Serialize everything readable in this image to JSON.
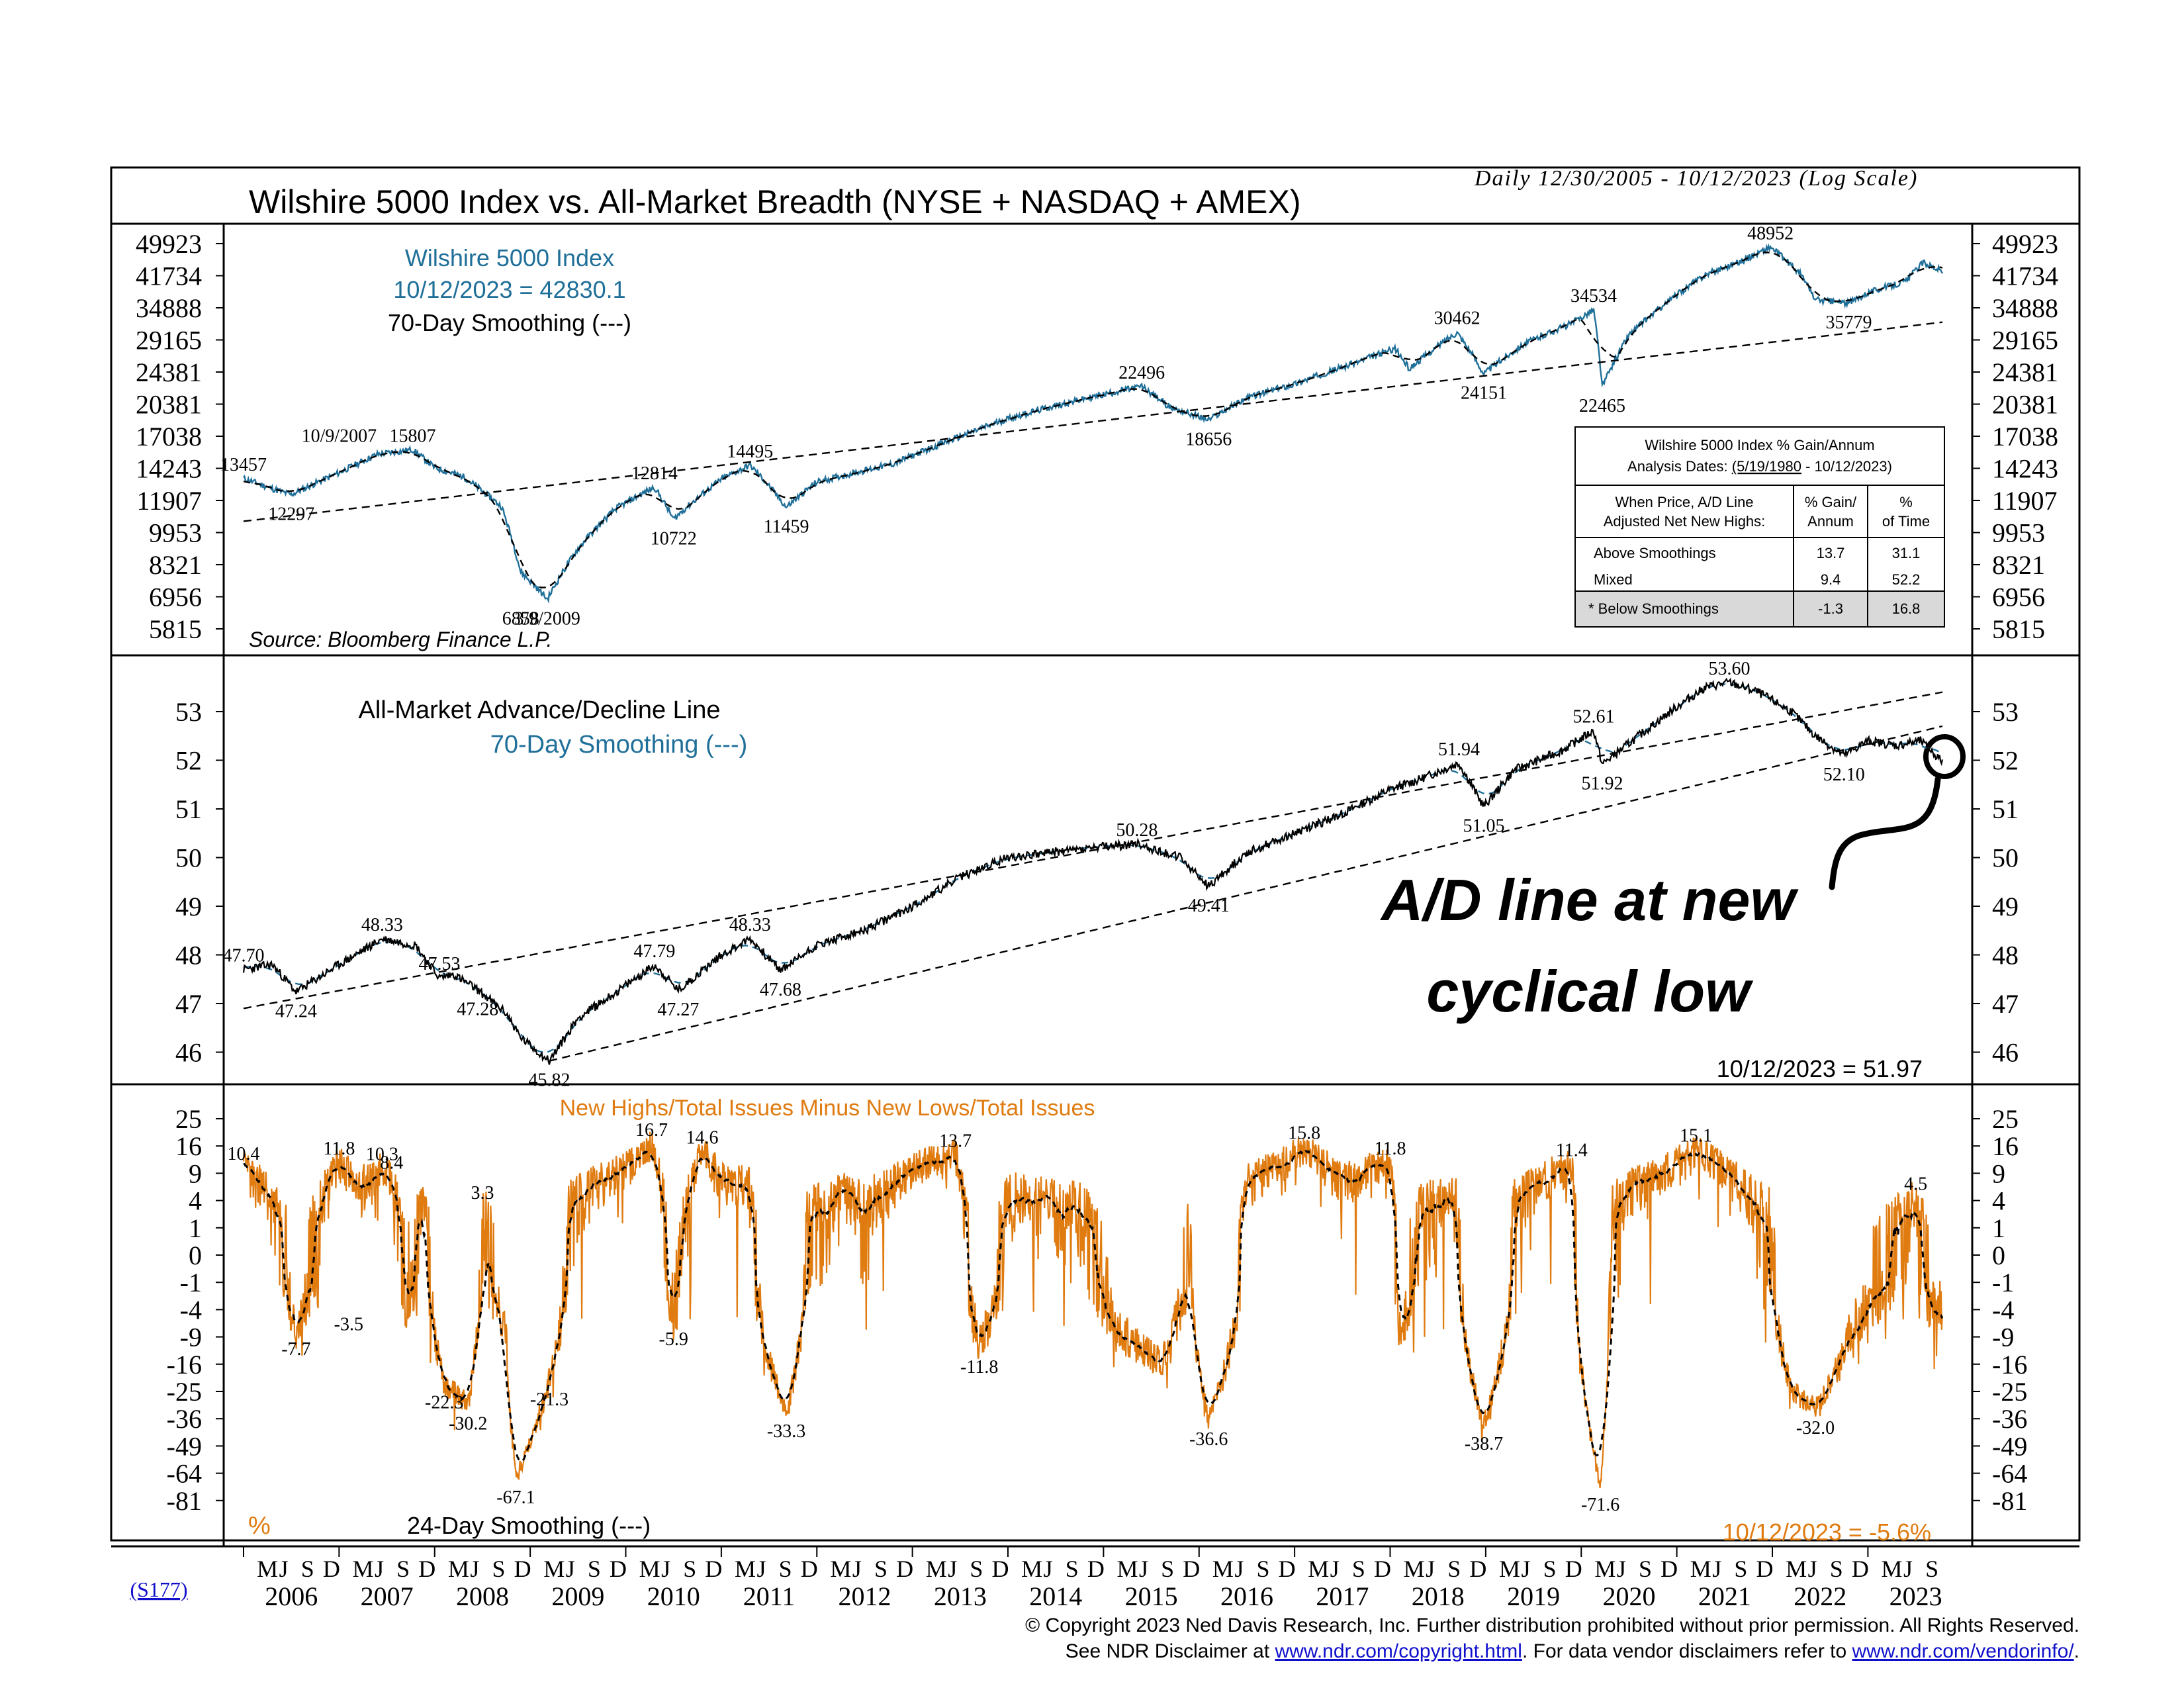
{
  "colors": {
    "blue": "#1f6f99",
    "orange": "#e07b10",
    "black": "#000000",
    "link": "#1010cc",
    "table_shade": "#d9d9d9"
  },
  "header": {
    "title": "Wilshire 5000 Index vs. All-Market Breadth (NYSE + NASDAQ + AMEX)",
    "date_range": "Daily 12/30/2005 - 10/12/2023 (Log Scale)"
  },
  "chart_data": [
    {
      "type": "line",
      "panel": "top",
      "legend": [
        "Wilshire 5000 Index",
        "10/12/2023 = 42830.1",
        "70-Day Smoothing (---)"
      ],
      "source": "Source: Bloomberg Finance L.P.",
      "scale": "log",
      "y_ticks": [
        "49923",
        "41734",
        "34888",
        "29165",
        "24381",
        "20381",
        "17038",
        "14243",
        "11907",
        "9953",
        "8321",
        "6956",
        "5815"
      ],
      "series": [
        {
          "name": "Wilshire 5000 Index",
          "x": [
            2006.0,
            2006.35,
            2006.5,
            2007.0,
            2007.4,
            2007.77,
            2008.0,
            2008.3,
            2008.7,
            2008.9,
            2009.18,
            2009.5,
            2009.9,
            2010.3,
            2010.5,
            2011.0,
            2011.3,
            2011.68,
            2012.0,
            2012.4,
            2012.8,
            2013.5,
            2014.0,
            2014.5,
            2015.0,
            2015.4,
            2015.7,
            2016.1,
            2016.5,
            2017.0,
            2017.6,
            2018.05,
            2018.2,
            2018.7,
            2018.98,
            2019.4,
            2019.9,
            2020.13,
            2020.22,
            2020.5,
            2020.9,
            2021.3,
            2021.7,
            2021.98,
            2022.3,
            2022.45,
            2022.8,
            2023.0,
            2023.4,
            2023.58,
            2023.78
          ],
          "y": [
            13457,
            12600,
            12297,
            13900,
            15400,
            15807,
            14300,
            13600,
            11500,
            8000,
            6858,
            9100,
            11400,
            12814,
            10722,
            13400,
            14495,
            11459,
            13200,
            13900,
            14600,
            17000,
            18800,
            20200,
            21500,
            22496,
            20000,
            18656,
            21100,
            22800,
            25500,
            27800,
            24800,
            30462,
            24151,
            28500,
            32000,
            34534,
            22465,
            30000,
            36000,
            42000,
            45500,
            48952,
            42000,
            36500,
            35779,
            38000,
            40500,
            45000,
            42830
          ]
        },
        {
          "name": "long-term trend",
          "x": [
            2006.0,
            2023.78
          ],
          "y": [
            10600,
            32200
          ]
        }
      ],
      "labels": [
        {
          "text": "13457",
          "x": 2006.0,
          "y": 13457
        },
        {
          "text": "12297",
          "x": 2006.5,
          "y": 12297
        },
        {
          "text": "10/9/2007",
          "x": 2007.0,
          "y": 15807
        },
        {
          "text": "15807",
          "x": 2007.77,
          "y": 15807
        },
        {
          "text": "6858",
          "x": 2008.9,
          "y": 6858
        },
        {
          "text": "3/9/2009",
          "x": 2009.18,
          "y": 6858
        },
        {
          "text": "12814",
          "x": 2010.3,
          "y": 12814
        },
        {
          "text": "10722",
          "x": 2010.5,
          "y": 10722
        },
        {
          "text": "14495",
          "x": 2011.3,
          "y": 14495
        },
        {
          "text": "11459",
          "x": 2011.68,
          "y": 11459
        },
        {
          "text": "22496",
          "x": 2015.4,
          "y": 22496
        },
        {
          "text": "18656",
          "x": 2016.1,
          "y": 18656
        },
        {
          "text": "30462",
          "x": 2018.7,
          "y": 30462
        },
        {
          "text": "24151",
          "x": 2018.98,
          "y": 24151
        },
        {
          "text": "34534",
          "x": 2020.13,
          "y": 34534
        },
        {
          "text": "22465",
          "x": 2020.22,
          "y": 22465
        },
        {
          "text": "48952",
          "x": 2021.98,
          "y": 48952
        },
        {
          "text": "35779",
          "x": 2022.8,
          "y": 35779
        }
      ],
      "table": {
        "title": "Wilshire 5000 Index % Gain/Annum",
        "dates_prefix": "Analysis Dates:",
        "dates_underlined": "(5/19/1980",
        "dates_suffix": "- 10/12/2023)",
        "header_col1": [
          "When Price, A/D Line",
          "Adjusted Net New Highs:"
        ],
        "header_col2": [
          "% Gain/",
          "Annum"
        ],
        "header_col3": [
          "%",
          "of Time"
        ],
        "rows": [
          {
            "label": "Above Smoothings",
            "gain": "13.7",
            "time": "31.1"
          },
          {
            "label": "Mixed",
            "gain": "9.4",
            "time": "52.2"
          },
          {
            "label": "*  Below Smoothings",
            "gain": "-1.3",
            "time": "16.8"
          }
        ]
      }
    },
    {
      "type": "line",
      "panel": "middle",
      "legend": [
        "All-Market Advance/Decline Line",
        "70-Day Smoothing (---)"
      ],
      "current": "10/12/2023 = 51.97",
      "y_ticks": [
        "53",
        "52",
        "51",
        "50",
        "49",
        "48",
        "47",
        "46"
      ],
      "series": [
        {
          "name": "All-Market Advance/Decline Line",
          "x": [
            2006.0,
            2006.3,
            2006.55,
            2007.0,
            2007.45,
            2007.8,
            2008.05,
            2008.2,
            2008.45,
            2008.75,
            2008.9,
            2009.2,
            2009.5,
            2009.95,
            2010.3,
            2010.55,
            2011.0,
            2011.3,
            2011.62,
            2012.0,
            2012.5,
            2013.0,
            2013.5,
            2014.0,
            2014.4,
            2014.9,
            2015.35,
            2015.8,
            2016.1,
            2016.5,
            2017.0,
            2017.5,
            2018.0,
            2018.3,
            2018.72,
            2018.98,
            2019.3,
            2019.8,
            2020.13,
            2020.22,
            2020.6,
            2021.0,
            2021.3,
            2021.55,
            2021.85,
            2022.2,
            2022.45,
            2022.75,
            2023.0,
            2023.3,
            2023.55,
            2023.78
          ],
          "y": [
            47.7,
            47.8,
            47.24,
            47.8,
            48.33,
            48.2,
            47.53,
            47.6,
            47.28,
            46.8,
            46.3,
            45.82,
            46.7,
            47.3,
            47.79,
            47.27,
            48.0,
            48.33,
            47.68,
            48.2,
            48.5,
            49.0,
            49.6,
            50.0,
            50.1,
            50.2,
            50.28,
            50.0,
            49.41,
            50.1,
            50.5,
            50.9,
            51.4,
            51.6,
            51.94,
            51.05,
            51.8,
            52.2,
            52.61,
            51.92,
            52.5,
            53.1,
            53.5,
            53.6,
            53.4,
            53.0,
            52.5,
            52.1,
            52.4,
            52.3,
            52.4,
            51.97
          ]
        },
        {
          "name": "trend line (from 45.82 low)",
          "x": [
            2006.0,
            2023.78
          ],
          "y": [
            46.9,
            53.4
          ]
        },
        {
          "name": "trend line (lower)",
          "x": [
            2009.2,
            2023.78
          ],
          "y": [
            45.82,
            52.7
          ]
        }
      ],
      "labels": [
        {
          "text": "47.70",
          "x": 2006.0,
          "y": 47.7
        },
        {
          "text": "47.24",
          "x": 2006.55,
          "y": 47.24
        },
        {
          "text": "48.33",
          "x": 2007.45,
          "y": 48.33
        },
        {
          "text": "47.53",
          "x": 2008.05,
          "y": 47.53
        },
        {
          "text": "47.28",
          "x": 2008.45,
          "y": 47.28
        },
        {
          "text": "45.82",
          "x": 2009.2,
          "y": 45.82
        },
        {
          "text": "47.79",
          "x": 2010.3,
          "y": 47.79
        },
        {
          "text": "47.27",
          "x": 2010.55,
          "y": 47.27
        },
        {
          "text": "48.33",
          "x": 2011.3,
          "y": 48.33
        },
        {
          "text": "47.68",
          "x": 2011.62,
          "y": 47.68
        },
        {
          "text": "50.28",
          "x": 2015.35,
          "y": 50.28
        },
        {
          "text": "49.41",
          "x": 2016.1,
          "y": 49.41
        },
        {
          "text": "51.94",
          "x": 2018.72,
          "y": 51.94
        },
        {
          "text": "51.05",
          "x": 2018.98,
          "y": 51.05
        },
        {
          "text": "52.61",
          "x": 2020.13,
          "y": 52.61
        },
        {
          "text": "51.92",
          "x": 2020.22,
          "y": 51.92
        },
        {
          "text": "53.60",
          "x": 2021.55,
          "y": 53.6
        },
        {
          "text": "52.10",
          "x": 2022.75,
          "y": 52.1
        }
      ],
      "annotation": [
        "A/D line at new",
        "cyclical low"
      ]
    },
    {
      "type": "line",
      "panel": "bottom",
      "legend": [
        "New Highs/Total Issues Minus New Lows/Total Issues",
        "24-Day Smoothing (---)"
      ],
      "unit": "%",
      "current": "10/12/2023 = -5.6%",
      "y_ticks": [
        "25",
        "16",
        "9",
        "4",
        "1",
        "0",
        "-1",
        "-4",
        "-9",
        "-16",
        "-25",
        "-36",
        "-49",
        "-64",
        "-81"
      ],
      "series": [
        {
          "name": "New Highs/Total Issues Minus New Lows/Total Issues",
          "x": [
            2006.0,
            2006.2,
            2006.4,
            2006.55,
            2006.8,
            2007.0,
            2007.2,
            2007.45,
            2007.55,
            2007.7,
            2007.9,
            2008.1,
            2008.35,
            2008.5,
            2008.75,
            2008.85,
            2009.2,
            2009.4,
            2009.7,
            2010.0,
            2010.27,
            2010.5,
            2010.8,
            2011.0,
            2011.28,
            2011.6,
            2011.68,
            2011.9,
            2012.3,
            2012.5,
            2012.8,
            2013.0,
            2013.45,
            2013.7,
            2014.0,
            2014.3,
            2014.8,
            2015.2,
            2015.6,
            2015.9,
            2016.1,
            2016.5,
            2016.9,
            2017.1,
            2017.5,
            2018.0,
            2018.1,
            2018.3,
            2018.7,
            2018.98,
            2019.3,
            2019.9,
            2020.2,
            2020.3,
            2020.6,
            2020.9,
            2021.2,
            2021.6,
            2021.98,
            2022.2,
            2022.45,
            2022.8,
            2023.0,
            2023.5,
            2023.65,
            2023.78
          ],
          "y": [
            10.4,
            6,
            2,
            -7.7,
            4,
            11.8,
            6,
            10.3,
            8.4,
            -3.5,
            5,
            -22.3,
            -30.2,
            3.3,
            -9,
            -67.1,
            -21.3,
            3,
            7,
            10,
            16.7,
            -5.9,
            14.6,
            8,
            7,
            -25,
            -33.3,
            2,
            5,
            3,
            7,
            10,
            13.7,
            -11.8,
            5,
            4,
            3,
            -9,
            -16,
            2,
            -36.6,
            7,
            12,
            15.8,
            7,
            11.8,
            -9,
            3,
            4,
            -38.7,
            4,
            11.4,
            -71.6,
            3,
            7,
            10,
            15.1,
            8,
            2,
            -25,
            -32.0,
            -9,
            -4,
            4.5,
            -4,
            -5.6
          ]
        }
      ],
      "labels": [
        {
          "text": "10.4",
          "x": 2006.0,
          "y": 10.4
        },
        {
          "text": "-7.7",
          "x": 2006.55,
          "y": -7.7
        },
        {
          "text": "11.8",
          "x": 2007.0,
          "y": 11.8
        },
        {
          "text": "10.3",
          "x": 2007.45,
          "y": 10.3
        },
        {
          "text": "8.4",
          "x": 2007.55,
          "y": 8.4
        },
        {
          "text": "-3.5",
          "x": 2007.1,
          "y": -3.5
        },
        {
          "text": "-22.3",
          "x": 2008.1,
          "y": -22.3
        },
        {
          "text": "-30.2",
          "x": 2008.35,
          "y": -30.2
        },
        {
          "text": "3.3",
          "x": 2008.5,
          "y": 3.3
        },
        {
          "text": "-67.1",
          "x": 2008.85,
          "y": -67.1
        },
        {
          "text": "-21.3",
          "x": 2009.2,
          "y": -21.3
        },
        {
          "text": "16.7",
          "x": 2010.27,
          "y": 16.7
        },
        {
          "text": "-5.9",
          "x": 2010.5,
          "y": -5.9
        },
        {
          "text": "14.6",
          "x": 2010.8,
          "y": 14.6
        },
        {
          "text": "-33.3",
          "x": 2011.68,
          "y": -33.3
        },
        {
          "text": "13.7",
          "x": 2013.45,
          "y": 13.7
        },
        {
          "text": "-11.8",
          "x": 2013.7,
          "y": -11.8
        },
        {
          "text": "-36.6",
          "x": 2016.1,
          "y": -36.6
        },
        {
          "text": "15.8",
          "x": 2017.1,
          "y": 15.8
        },
        {
          "text": "11.8",
          "x": 2018.0,
          "y": 11.8
        },
        {
          "text": "-38.7",
          "x": 2018.98,
          "y": -38.7
        },
        {
          "text": "11.4",
          "x": 2019.9,
          "y": 11.4
        },
        {
          "text": "-71.6",
          "x": 2020.2,
          "y": -71.6
        },
        {
          "text": "15.1",
          "x": 2021.2,
          "y": 15.1
        },
        {
          "text": "-32.0",
          "x": 2022.45,
          "y": -32.0
        },
        {
          "text": "4.5",
          "x": 2023.5,
          "y": 4.5
        }
      ]
    }
  ],
  "x_axis": {
    "range": [
      2006.0,
      2023.78
    ],
    "months": [
      "M",
      "J",
      "S",
      "D"
    ],
    "years": [
      "2006",
      "2007",
      "2008",
      "2009",
      "2010",
      "2011",
      "2012",
      "2013",
      "2014",
      "2015",
      "2016",
      "2017",
      "2018",
      "2019",
      "2020",
      "2021",
      "2022",
      "2023"
    ]
  },
  "chart_code": "(S177)",
  "footer": {
    "copyright": "© Copyright 2023 Ned Davis Research, Inc.  Further distribution prohibited without prior permission.  All Rights Reserved.",
    "disclaimer_prefix": "See NDR Disclaimer at ",
    "disclaimer_link": "www.ndr.com/copyright.html",
    "disclaimer_mid": ". For data vendor disclaimers refer to ",
    "vendor_link": "www.ndr.com/vendorinfo/",
    "disclaimer_suffix": "."
  }
}
